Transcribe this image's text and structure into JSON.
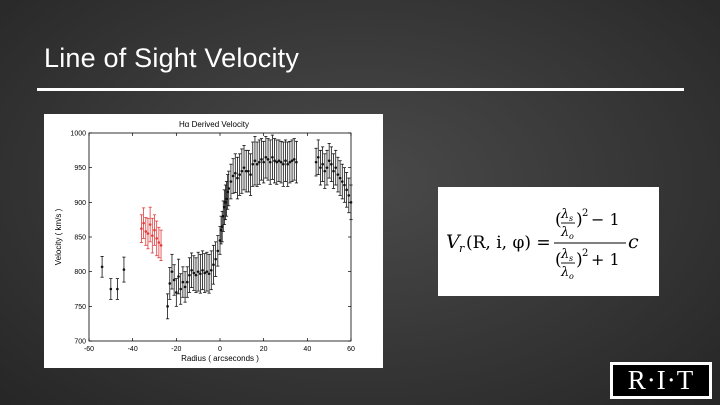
{
  "slide": {
    "title": "Line of Sight Velocity"
  },
  "logo": {
    "text": "R·I·T"
  },
  "formula": {
    "lhs": "V",
    "lhs_sub": "r",
    "lhs_args": "(R, i, φ) =",
    "ls": "λ",
    "ls_sub": "s",
    "lo": "λ",
    "lo_sub": "o",
    "power": "2",
    "minus_one": "− 1",
    "plus_one": "+ 1",
    "c": "c"
  },
  "chart_data": {
    "type": "scatter",
    "title": "Hα Derived Velocity",
    "xlabel": "Radius ( arcseconds )",
    "ylabel": "Velocity ( km/s )",
    "xlim": [
      -60,
      60
    ],
    "ylim": [
      700,
      1000
    ],
    "xticks": [
      -60,
      -40,
      -20,
      0,
      20,
      40,
      60
    ],
    "yticks": [
      700,
      750,
      800,
      850,
      900,
      950,
      1000
    ],
    "grid": false,
    "series": [
      {
        "color": "#111111",
        "points": [
          [
            -54,
            807,
            15
          ],
          [
            -50,
            775,
            15
          ],
          [
            -47,
            775,
            15
          ],
          [
            -44,
            803,
            18
          ],
          [
            -24,
            750,
            18
          ],
          [
            -23,
            783,
            23
          ],
          [
            -22,
            800,
            25
          ],
          [
            -21,
            788,
            22
          ],
          [
            -20,
            770,
            20
          ],
          [
            -19,
            793,
            25
          ],
          [
            -18,
            775,
            22
          ],
          [
            -17,
            785,
            22
          ],
          [
            -16,
            778,
            22
          ],
          [
            -15,
            785,
            22
          ],
          [
            -14,
            795,
            25
          ],
          [
            -13,
            802,
            25
          ],
          [
            -12,
            798,
            25
          ],
          [
            -11,
            795,
            25
          ],
          [
            -10,
            800,
            28
          ],
          [
            -9,
            797,
            28
          ],
          [
            -8,
            802,
            28
          ],
          [
            -7,
            798,
            28
          ],
          [
            -6,
            800,
            28
          ],
          [
            -5,
            797,
            28
          ],
          [
            -4,
            802,
            28
          ],
          [
            -3,
            810,
            28
          ],
          [
            -2,
            818,
            25
          ],
          [
            -1,
            830,
            22
          ],
          [
            0,
            845,
            20
          ],
          [
            0.5,
            860,
            20
          ],
          [
            1,
            865,
            22
          ],
          [
            1.5,
            880,
            22
          ],
          [
            2,
            893,
            25
          ],
          [
            2.5,
            900,
            25
          ],
          [
            3,
            905,
            25
          ],
          [
            3.5,
            915,
            25
          ],
          [
            4,
            920,
            25
          ],
          [
            5,
            930,
            25
          ],
          [
            6,
            938,
            25
          ],
          [
            7,
            942,
            28
          ],
          [
            8,
            935,
            30
          ],
          [
            9,
            940,
            30
          ],
          [
            10,
            945,
            32
          ],
          [
            11,
            950,
            32
          ],
          [
            12,
            945,
            30
          ],
          [
            13,
            945,
            30
          ],
          [
            14,
            940,
            30
          ],
          [
            15,
            955,
            32
          ],
          [
            16,
            960,
            35
          ],
          [
            17,
            955,
            32
          ],
          [
            18,
            958,
            32
          ],
          [
            19,
            962,
            30
          ],
          [
            20,
            958,
            30
          ],
          [
            21,
            965,
            30
          ],
          [
            22,
            962,
            30
          ],
          [
            23,
            958,
            32
          ],
          [
            24,
            965,
            32
          ],
          [
            25,
            960,
            32
          ],
          [
            26,
            958,
            32
          ],
          [
            27,
            960,
            30
          ],
          [
            28,
            958,
            30
          ],
          [
            29,
            955,
            32
          ],
          [
            30,
            960,
            30
          ],
          [
            31,
            955,
            32
          ],
          [
            32,
            958,
            30
          ],
          [
            33,
            960,
            30
          ],
          [
            34,
            962,
            30
          ],
          [
            35,
            958,
            30
          ],
          [
            44,
            958,
            20
          ],
          [
            45,
            965,
            25
          ],
          [
            46,
            950,
            25
          ],
          [
            47,
            955,
            25
          ],
          [
            48,
            945,
            25
          ],
          [
            49,
            950,
            25
          ],
          [
            50,
            960,
            25
          ],
          [
            51,
            955,
            25
          ],
          [
            52,
            945,
            25
          ],
          [
            53,
            950,
            25
          ],
          [
            54,
            940,
            25
          ],
          [
            55,
            935,
            25
          ],
          [
            56,
            930,
            25
          ],
          [
            57,
            925,
            25
          ],
          [
            58,
            918,
            25
          ],
          [
            59,
            910,
            25
          ],
          [
            60,
            900,
            25
          ]
        ]
      },
      {
        "color": "#e23b3b",
        "points": [
          [
            -36,
            862,
            20
          ],
          [
            -35,
            870,
            22
          ],
          [
            -34,
            858,
            20
          ],
          [
            -33,
            855,
            22
          ],
          [
            -32,
            868,
            25
          ],
          [
            -31,
            852,
            25
          ],
          [
            -30,
            860,
            22
          ],
          [
            -29,
            848,
            25
          ],
          [
            -28,
            842,
            22
          ],
          [
            -27,
            838,
            22
          ]
        ]
      }
    ]
  }
}
